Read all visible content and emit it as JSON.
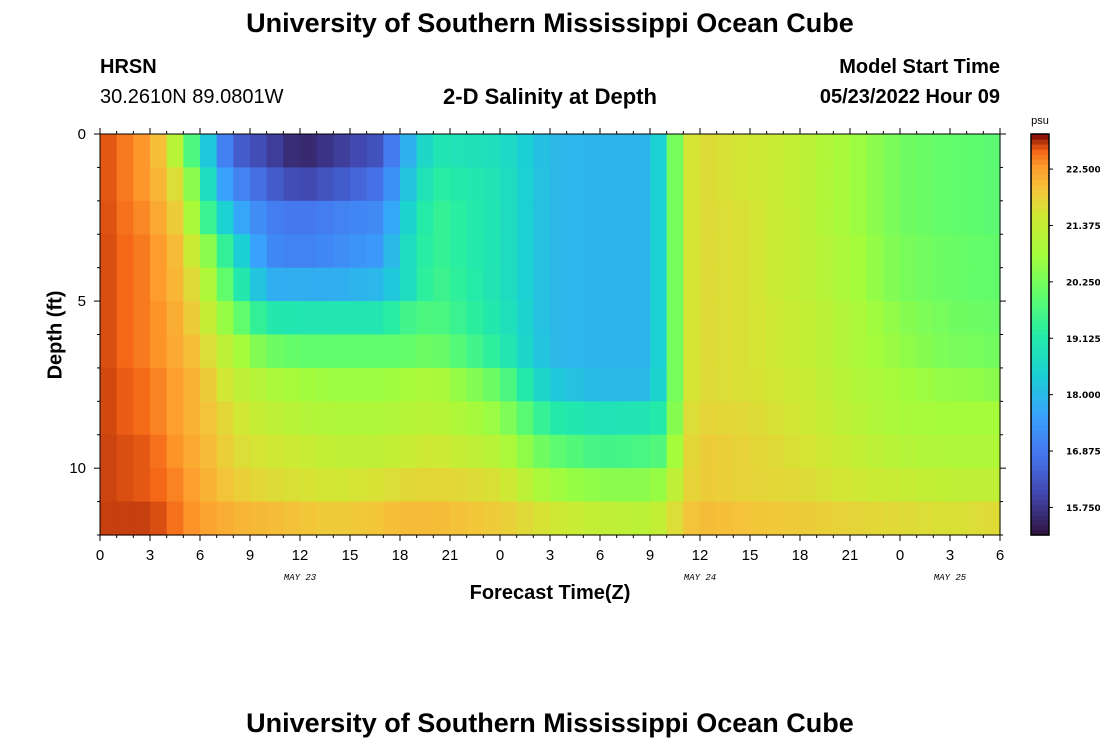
{
  "title": "University of Southern Mississippi Ocean Cube",
  "title_repeat": "University of Southern Mississippi Ocean Cube",
  "station": {
    "name": "HRSN",
    "coords": "30.2610N  89.0801W"
  },
  "subtitle": "2-D Salinity at Depth",
  "model_start": {
    "label": "Model Start Time",
    "value": "05/23/2022 Hour 09"
  },
  "chart_data": {
    "type": "heatmap",
    "title": "2-D Salinity at Depth",
    "xlabel": "Forecast Time(Z)",
    "ylabel": "Depth (ft)",
    "x_range_hours": [
      0,
      54
    ],
    "y_range_ft": [
      0,
      12
    ],
    "x_tick_labels": [
      "0",
      "3",
      "6",
      "9",
      "12",
      "15",
      "18",
      "21",
      "0",
      "3",
      "6",
      "9",
      "12",
      "15",
      "18",
      "21",
      "0",
      "3",
      "6"
    ],
    "y_tick_labels": [
      "0",
      "5",
      "10"
    ],
    "y_tick_values": [
      0,
      5,
      10
    ],
    "day_labels": [
      {
        "text": "MAY 23",
        "hour": 12
      },
      {
        "text": "MAY 24",
        "hour": 36
      },
      {
        "text": "MAY 25",
        "hour": 51
      }
    ],
    "colorbar": {
      "unit": "psu",
      "min": 15.2,
      "max": 23.2,
      "tick_labels": [
        "22.500",
        "21.375",
        "20.250",
        "19.125",
        "18.000",
        "16.875",
        "15.750"
      ],
      "tick_values": [
        22.5,
        21.375,
        20.25,
        19.125,
        18.0,
        16.875,
        15.75
      ]
    },
    "depth_levels_ft": [
      0.5,
      1.5,
      2.5,
      3.5,
      4.5,
      5.5,
      6.5,
      7.5,
      8.5,
      9.5,
      10.5,
      11.5
    ],
    "control_hours": [
      0,
      3,
      4,
      5,
      6,
      7,
      8,
      10,
      12,
      14,
      17,
      18,
      20,
      24,
      27,
      30,
      33,
      34,
      35,
      36,
      39,
      42,
      45,
      48,
      51,
      54
    ],
    "salinity_psu": [
      [
        23.0,
        22.5,
        21.8,
        20.5,
        19.0,
        17.5,
        16.5,
        16.0,
        15.5,
        15.8,
        16.3,
        17.5,
        19.0,
        18.8,
        18.0,
        17.9,
        17.9,
        19.0,
        21.5,
        21.8,
        21.6,
        21.3,
        20.8,
        20.2,
        20.0,
        19.9
      ],
      [
        23.0,
        22.5,
        22.0,
        21.5,
        19.5,
        18.0,
        17.2,
        16.5,
        16.0,
        16.3,
        16.8,
        17.8,
        19.3,
        18.9,
        18.0,
        17.9,
        17.9,
        19.0,
        21.5,
        21.8,
        21.6,
        21.3,
        20.8,
        20.2,
        20.0,
        19.9
      ],
      [
        23.0,
        22.6,
        22.2,
        21.8,
        20.0,
        19.0,
        17.9,
        17.0,
        16.8,
        17.0,
        17.2,
        18.2,
        19.5,
        18.9,
        18.0,
        17.9,
        17.9,
        19.0,
        21.5,
        21.8,
        21.7,
        21.3,
        20.8,
        20.2,
        20.0,
        19.9
      ],
      [
        23.0,
        22.7,
        22.4,
        22.0,
        21.0,
        20.0,
        18.8,
        17.2,
        17.0,
        17.2,
        17.5,
        18.5,
        19.5,
        18.9,
        18.0,
        17.9,
        17.9,
        19.0,
        21.5,
        21.8,
        21.7,
        21.3,
        20.9,
        20.3,
        20.1,
        20.0
      ],
      [
        23.0,
        22.7,
        22.4,
        22.1,
        21.5,
        20.5,
        19.5,
        17.8,
        17.8,
        17.8,
        18.0,
        18.5,
        19.6,
        18.9,
        18.0,
        17.9,
        17.9,
        19.0,
        21.5,
        21.8,
        21.7,
        21.3,
        20.9,
        20.3,
        20.1,
        20.0
      ],
      [
        23.0,
        22.7,
        22.5,
        22.2,
        21.8,
        21.0,
        20.3,
        19.1,
        19.0,
        19.0,
        19.0,
        19.5,
        19.8,
        19.0,
        18.0,
        17.9,
        17.9,
        19.0,
        21.5,
        21.8,
        21.7,
        21.4,
        21.0,
        20.5,
        20.2,
        20.1
      ],
      [
        23.0,
        22.7,
        22.5,
        22.3,
        22.0,
        21.5,
        21.0,
        20.2,
        20.0,
        20.0,
        20.0,
        20.0,
        20.2,
        19.2,
        18.0,
        17.9,
        17.9,
        19.0,
        21.5,
        21.8,
        21.7,
        21.4,
        21.0,
        20.6,
        20.3,
        20.2
      ],
      [
        23.0,
        22.8,
        22.6,
        22.4,
        22.2,
        21.8,
        21.4,
        21.0,
        20.8,
        20.7,
        20.7,
        20.8,
        21.0,
        20.0,
        18.3,
        18.0,
        18.0,
        19.0,
        21.5,
        21.8,
        21.7,
        21.5,
        21.1,
        20.8,
        20.6,
        20.5
      ],
      [
        23.0,
        22.8,
        22.6,
        22.4,
        22.2,
        22.0,
        21.7,
        21.3,
        21.1,
        21.0,
        21.0,
        21.1,
        21.2,
        20.6,
        19.2,
        18.9,
        19.0,
        19.3,
        21.6,
        21.9,
        21.8,
        21.6,
        21.2,
        20.9,
        20.8,
        20.8
      ],
      [
        23.0,
        22.9,
        22.7,
        22.5,
        22.3,
        22.1,
        21.8,
        21.6,
        21.5,
        21.3,
        21.3,
        21.4,
        21.6,
        21.1,
        20.0,
        19.6,
        19.7,
        19.9,
        21.7,
        22.0,
        21.9,
        21.7,
        21.4,
        21.1,
        21.0,
        21.0
      ],
      [
        23.0,
        22.9,
        22.8,
        22.6,
        22.4,
        22.2,
        22.0,
        21.8,
        21.7,
        21.6,
        21.7,
        21.8,
        21.9,
        21.7,
        20.8,
        20.5,
        20.5,
        20.8,
        21.8,
        22.0,
        21.9,
        21.8,
        21.6,
        21.4,
        21.3,
        21.3
      ],
      [
        23.0,
        23.0,
        22.9,
        22.7,
        22.5,
        22.4,
        22.3,
        22.2,
        22.1,
        22.0,
        22.1,
        22.2,
        22.2,
        22.0,
        21.6,
        21.3,
        21.2,
        21.5,
        22.0,
        22.2,
        22.1,
        22.0,
        21.9,
        21.8,
        21.7,
        21.8
      ]
    ]
  }
}
